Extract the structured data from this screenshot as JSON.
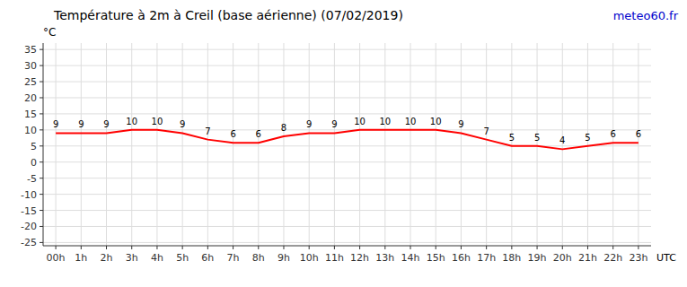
{
  "chart_data": {
    "type": "line",
    "title": "Température à 2m à Creil (base aérienne) (07/02/2019)",
    "y_label": "°C",
    "x_label": "UTC",
    "annotation": "meteo60.fr",
    "categories": [
      "00h",
      "1h",
      "2h",
      "3h",
      "4h",
      "5h",
      "6h",
      "7h",
      "8h",
      "9h",
      "10h",
      "11h",
      "12h",
      "13h",
      "14h",
      "15h",
      "16h",
      "17h",
      "18h",
      "19h",
      "20h",
      "21h",
      "22h",
      "23h"
    ],
    "values": [
      9,
      9,
      9,
      10,
      10,
      9,
      7,
      6,
      6,
      8,
      9,
      9,
      10,
      10,
      10,
      10,
      9,
      7,
      5,
      5,
      4,
      5,
      6,
      6
    ],
    "color": "#ff0000",
    "ylim": [
      -26,
      37
    ],
    "yticks": [
      -25,
      -20,
      -15,
      -10,
      -5,
      0,
      5,
      10,
      15,
      20,
      25,
      30,
      35
    ],
    "grid": true,
    "data_labels": true
  }
}
